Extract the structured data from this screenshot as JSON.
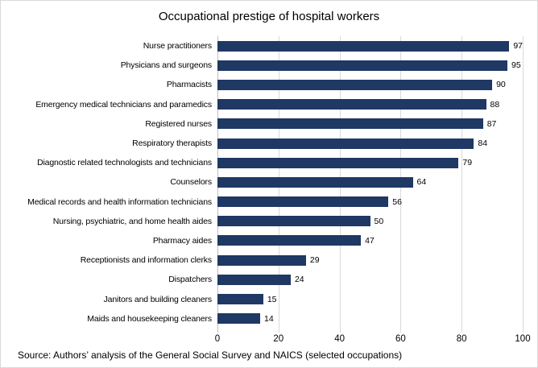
{
  "chart_data": {
    "type": "bar",
    "orientation": "horizontal",
    "title": "Occupational prestige of hospital workers",
    "categories": [
      "Nurse practitioners",
      "Physicians and surgeons",
      "Pharmacists",
      "Emergency medical technicians and paramedics",
      "Registered nurses",
      "Respiratory therapists",
      "Diagnostic related technologists and technicians",
      "Counselors",
      "Medical records and health information technicians",
      "Nursing, psychiatric, and home health aides",
      "Pharmacy aides",
      "Receptionists and information clerks",
      "Dispatchers",
      "Janitors and building cleaners",
      "Maids and housekeeping cleaners"
    ],
    "values": [
      97,
      95,
      90,
      88,
      87,
      84,
      79,
      64,
      56,
      50,
      47,
      29,
      24,
      15,
      14
    ],
    "xlim": [
      0,
      100
    ],
    "xticks": [
      0,
      20,
      40,
      60,
      80,
      100
    ],
    "grid": "vertical",
    "legend": "none",
    "data_labels": true,
    "bar_color": "#1F3864",
    "gridline_color": "#D9D9D9",
    "axis_line_color": "#BFBFBF"
  },
  "source_note": "Source: Authors’ analysis of the General Social Survey and NAICS (selected occupations)"
}
